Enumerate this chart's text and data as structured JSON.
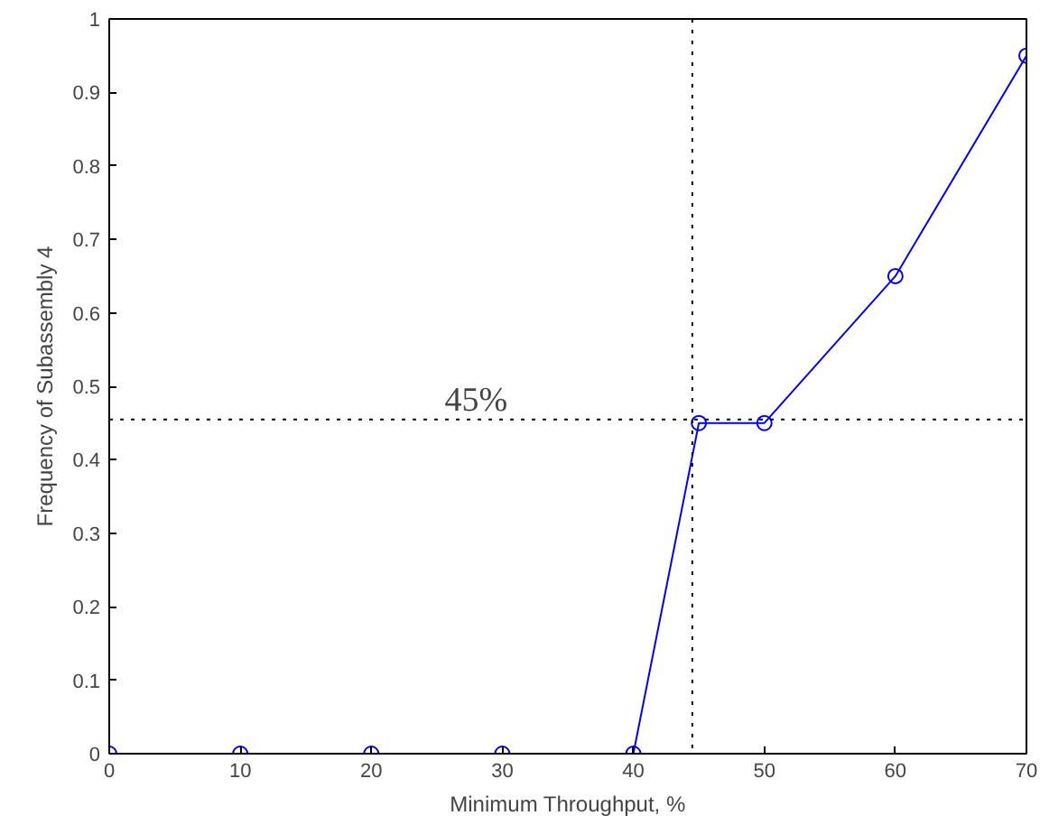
{
  "chart_data": {
    "type": "line",
    "xlabel": "Minimum Throughput, %",
    "ylabel": "Frequency of Subassembly 4",
    "x": [
      0,
      10,
      20,
      30,
      40,
      45,
      50,
      60,
      70
    ],
    "series": [
      {
        "color": "#0000ff",
        "values": [
          0,
          0,
          0,
          0,
          0,
          0.45,
          0.45,
          0.65,
          0.95
        ]
      }
    ],
    "xlim": [
      0,
      70
    ],
    "ylim": [
      0,
      1
    ],
    "xticks": [
      0,
      10,
      20,
      30,
      40,
      50,
      60,
      70
    ],
    "yticks": [
      0,
      0.1,
      0.2,
      0.3,
      0.4,
      0.5,
      0.6,
      0.7,
      0.8,
      0.9,
      1
    ],
    "ref_lines": [
      {
        "axis": "y",
        "value": 0.455,
        "line_style": "dotted",
        "color": "#000000"
      },
      {
        "axis": "x",
        "value": 44.5,
        "line_style": "dotted",
        "color": "#000000"
      }
    ],
    "annotations": [
      {
        "text": "45%",
        "x": 28,
        "y": 0.455
      }
    ],
    "grid": false,
    "marker": "circle",
    "line_style": "solid"
  }
}
